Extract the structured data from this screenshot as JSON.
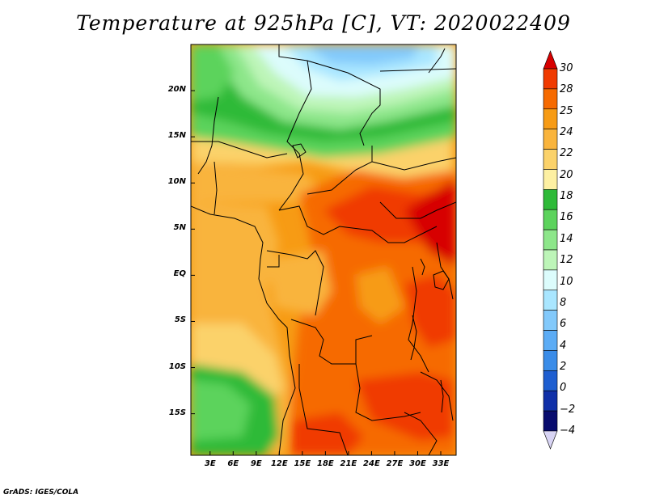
{
  "title": "Temperature at 925hPa [C], VT: 2020022409",
  "credit": "GrADS: IGES/COLA",
  "map": {
    "lat_ticks": [
      {
        "label": "20N",
        "value": 20
      },
      {
        "label": "15N",
        "value": 15
      },
      {
        "label": "10N",
        "value": 10
      },
      {
        "label": "5N",
        "value": 5
      },
      {
        "label": "EQ",
        "value": 0
      },
      {
        "label": "5S",
        "value": -5
      },
      {
        "label": "10S",
        "value": -10
      },
      {
        "label": "15S",
        "value": -15
      }
    ],
    "lon_ticks": [
      {
        "label": "3E",
        "value": 3
      },
      {
        "label": "6E",
        "value": 6
      },
      {
        "label": "9E",
        "value": 9
      },
      {
        "label": "12E",
        "value": 12
      },
      {
        "label": "15E",
        "value": 15
      },
      {
        "label": "18E",
        "value": 18
      },
      {
        "label": "21E",
        "value": 21
      },
      {
        "label": "24E",
        "value": 24
      },
      {
        "label": "27E",
        "value": 27
      },
      {
        "label": "30E",
        "value": 30
      },
      {
        "label": "33E",
        "value": 33
      }
    ],
    "lat_range": [
      -19.5,
      25
    ],
    "lon_range": [
      0.5,
      35
    ]
  },
  "colorbar": {
    "levels": [
      {
        "label": "30",
        "value": 30
      },
      {
        "label": "28",
        "value": 28
      },
      {
        "label": "25",
        "value": 25
      },
      {
        "label": "24",
        "value": 24
      },
      {
        "label": "22",
        "value": 22
      },
      {
        "label": "20",
        "value": 20
      },
      {
        "label": "18",
        "value": 18
      },
      {
        "label": "16",
        "value": 16
      },
      {
        "label": "14",
        "value": 14
      },
      {
        "label": "12",
        "value": 12
      },
      {
        "label": "10",
        "value": 10
      },
      {
        "label": "8",
        "value": 8
      },
      {
        "label": "6",
        "value": 6
      },
      {
        "label": "4",
        "value": 4
      },
      {
        "label": "2",
        "value": 2
      },
      {
        "label": "0",
        "value": 0
      },
      {
        "label": "−2",
        "value": -2
      },
      {
        "label": "−4",
        "value": -4
      }
    ],
    "colors": [
      "#d70000",
      "#f03a00",
      "#f66a00",
      "#f79b14",
      "#f9b43c",
      "#fbd26a",
      "#fdf0a2",
      "#2eba38",
      "#5cd35c",
      "#8de68a",
      "#bdf5b8",
      "#dcfcfc",
      "#a9e6ff",
      "#82c9fb",
      "#5cacf5",
      "#3a8ce8",
      "#1e5ed0",
      "#1030a8",
      "#080c6e"
    ],
    "top_color": "#d70000",
    "bottom_color": "#d8d4f4"
  }
}
